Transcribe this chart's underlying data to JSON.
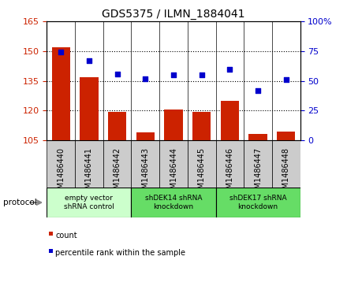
{
  "title": "GDS5375 / ILMN_1884041",
  "samples": [
    "GSM1486440",
    "GSM1486441",
    "GSM1486442",
    "GSM1486443",
    "GSM1486444",
    "GSM1486445",
    "GSM1486446",
    "GSM1486447",
    "GSM1486448"
  ],
  "counts": [
    152,
    137,
    119.5,
    109,
    120.5,
    119.5,
    125,
    108,
    109.5
  ],
  "percentile_ranks": [
    74,
    67,
    56,
    52,
    55,
    55,
    60,
    42,
    51
  ],
  "ylim_left": [
    105,
    165
  ],
  "ylim_right": [
    0,
    100
  ],
  "yticks_left": [
    105,
    120,
    135,
    150,
    165
  ],
  "yticks_right": [
    0,
    25,
    50,
    75,
    100
  ],
  "bar_color": "#CC2200",
  "dot_color": "#0000CC",
  "protocol_groups": [
    {
      "label": "empty vector\nshRNA control",
      "start": 0,
      "end": 3,
      "color": "#ccffcc"
    },
    {
      "label": "shDEK14 shRNA\nknockdown",
      "start": 3,
      "end": 6,
      "color": "#66dd66"
    },
    {
      "label": "shDEK17 shRNA\nknockdown",
      "start": 6,
      "end": 9,
      "color": "#66dd66"
    }
  ],
  "protocol_label": "protocol",
  "legend_count_label": "count",
  "legend_percentile_label": "percentile rank within the sample",
  "sample_bg_color": "#cccccc",
  "plot_bg_color": "#ffffff",
  "title_fontsize": 10,
  "tick_fontsize": 8,
  "sample_fontsize": 7
}
